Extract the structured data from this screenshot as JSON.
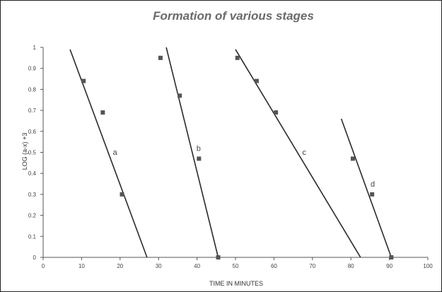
{
  "chart_data": {
    "type": "scatter",
    "title": "Formation of various stages",
    "xlabel": "TIME IN MINUTES",
    "ylabel": "LOG (a-x) +3",
    "xlim": [
      0,
      100
    ],
    "ylim": [
      0,
      1
    ],
    "x_ticks": [
      "0",
      "10",
      "20",
      "30",
      "40",
      "50",
      "60",
      "70",
      "80",
      "90",
      "100"
    ],
    "y_ticks": [
      "0",
      "0.1",
      "0.2",
      "0.3",
      "0.4",
      "0.5",
      "0.6",
      "0.7",
      "0.8",
      "0.9",
      "1"
    ],
    "grid": false,
    "legend": "none",
    "series": [
      {
        "name": "a",
        "points": [
          {
            "x": 10.5,
            "y": 0.84
          },
          {
            "x": 15.5,
            "y": 0.69
          },
          {
            "x": 20.5,
            "y": 0.3
          }
        ],
        "fit_line": [
          {
            "x": 7,
            "y": 0.99
          },
          {
            "x": 27,
            "y": 0
          }
        ]
      },
      {
        "name": "b",
        "points": [
          {
            "x": 30.5,
            "y": 0.95
          },
          {
            "x": 35.5,
            "y": 0.77
          },
          {
            "x": 40.5,
            "y": 0.47
          },
          {
            "x": 45.5,
            "y": 0
          }
        ],
        "fit_line": [
          {
            "x": 32,
            "y": 1.0
          },
          {
            "x": 45.5,
            "y": 0
          }
        ]
      },
      {
        "name": "c",
        "points": [
          {
            "x": 50.5,
            "y": 0.95
          },
          {
            "x": 55.5,
            "y": 0.84
          },
          {
            "x": 60.5,
            "y": 0.69
          }
        ],
        "fit_line": [
          {
            "x": 50,
            "y": 0.99
          },
          {
            "x": 82.5,
            "y": 0
          }
        ]
      },
      {
        "name": "d",
        "points": [
          {
            "x": 80.5,
            "y": 0.47
          },
          {
            "x": 85.5,
            "y": 0.3
          },
          {
            "x": 90.5,
            "y": 0
          }
        ],
        "fit_line": [
          {
            "x": 77.5,
            "y": 0.66
          },
          {
            "x": 90.5,
            "y": 0
          }
        ]
      }
    ],
    "colors": {
      "line": "#2b2b2b",
      "marker": "#555555",
      "axis": "#555555"
    }
  }
}
